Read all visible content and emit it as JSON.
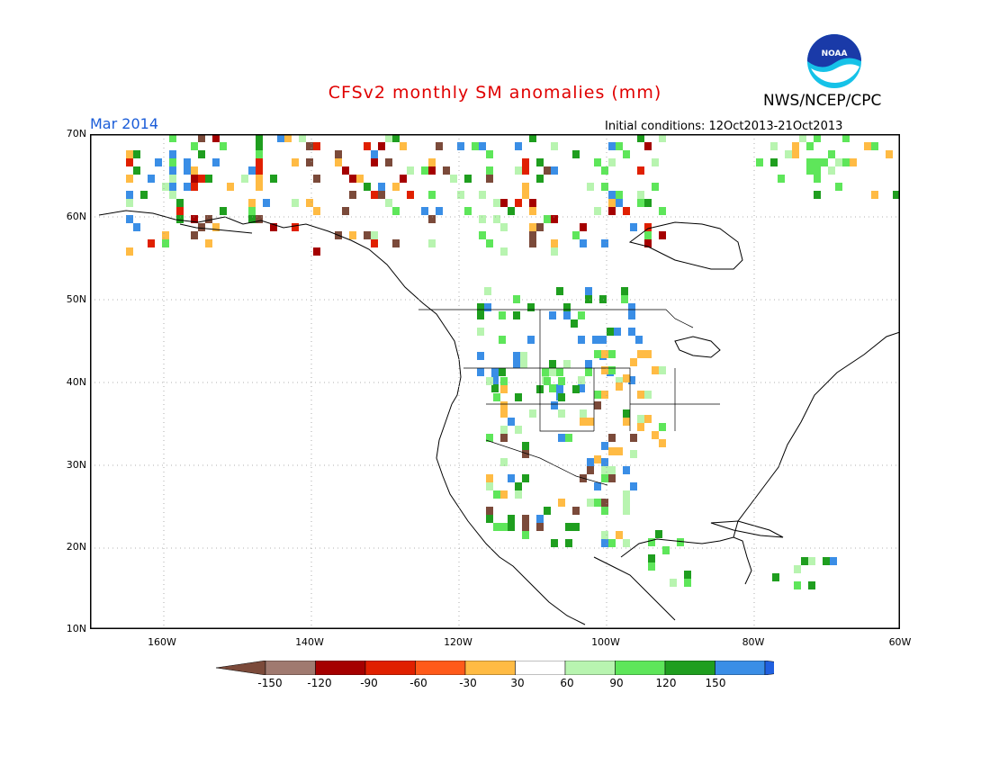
{
  "title": "CFSv2 monthly SM anomalies (mm)",
  "agency": "NWS/NCEP/CPC",
  "valid_month": "Mar 2014",
  "initial_conditions": "Initial conditions: 12Oct2013-21Oct2013",
  "logo_text": "NOAA",
  "lat_labels": [
    "70N",
    "60N",
    "50N",
    "40N",
    "30N",
    "20N",
    "10N"
  ],
  "lon_labels": [
    "160W",
    "140W",
    "120W",
    "100W",
    "80W",
    "60W"
  ],
  "colorbar": {
    "labels": [
      "-150",
      "-120",
      "-90",
      "-60",
      "-30",
      "30",
      "60",
      "90",
      "120",
      "150"
    ],
    "colors": [
      "#7b4a3a",
      "#a07a70",
      "#a50000",
      "#e02000",
      "#ff5a1a",
      "#ffbb44",
      "#ffffff",
      "#b8f4b0",
      "#5ee65a",
      "#1f9e1f",
      "#3a8ee6",
      "#2060e0"
    ]
  }
}
